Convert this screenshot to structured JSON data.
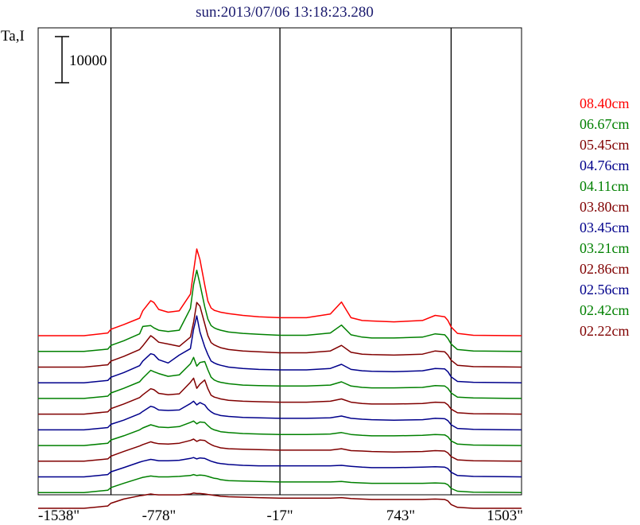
{
  "chart_data": {
    "type": "line",
    "title": "sun:2013/07/06 13:18:23.280",
    "ylabel": "Ta,I",
    "xlabel": "",
    "x_ticks": [
      "-1538\"",
      "-778\"",
      "-17\"",
      "743\"",
      "1503\""
    ],
    "x_tick_values": [
      -1538,
      -778,
      -17,
      743,
      1503
    ],
    "xlim": [
      -1538,
      1503
    ],
    "vertical_lines_x": [
      -1080,
      -17,
      1060
    ],
    "scale_bar": {
      "label": "10000",
      "value": 10000
    },
    "grid": false,
    "legend_placement": "right",
    "profile_x": [
      -1538,
      -1250,
      -1100,
      -1080,
      -1000,
      -900,
      -880,
      -830,
      -810,
      -780,
      -720,
      -650,
      -580,
      -560,
      -540,
      -520,
      -490,
      -470,
      -450,
      -430,
      -410,
      -390,
      -340,
      -250,
      -150,
      -17,
      60,
      150,
      300,
      370,
      430,
      500,
      560,
      700,
      880,
      960,
      1020,
      1040,
      1060,
      1100,
      1200,
      1503
    ],
    "series": [
      {
        "name": "08.40cm",
        "color": "#ff0000",
        "offset": 36200,
        "y": [
          0,
          0,
          600,
          1400,
          2400,
          3800,
          5400,
          7600,
          7200,
          5700,
          5100,
          5400,
          9000,
          14000,
          18800,
          16500,
          11000,
          7500,
          6000,
          5500,
          5300,
          5100,
          4800,
          4400,
          4100,
          3900,
          3900,
          3900,
          4700,
          7300,
          3900,
          3300,
          3200,
          3000,
          3300,
          4400,
          4100,
          3300,
          1900,
          500,
          100,
          0
        ]
      },
      {
        "name": "06.67cm",
        "color": "#008000",
        "offset": 32800,
        "y": [
          0,
          0,
          500,
          1300,
          2300,
          3800,
          5400,
          5600,
          5100,
          4600,
          4300,
          4600,
          9300,
          14500,
          17600,
          14600,
          9700,
          7000,
          5600,
          5100,
          4800,
          4600,
          4200,
          3900,
          3700,
          3500,
          3500,
          3500,
          4000,
          5700,
          3600,
          3100,
          2900,
          2900,
          3100,
          3800,
          3600,
          2800,
          1600,
          400,
          100,
          0
        ]
      },
      {
        "name": "05.45cm",
        "color": "#800000",
        "offset": 29400,
        "y": [
          0,
          0,
          500,
          1300,
          2300,
          3800,
          4600,
          6800,
          6300,
          5400,
          5000,
          4500,
          6500,
          9700,
          14000,
          13200,
          9400,
          6800,
          5300,
          4800,
          4500,
          4200,
          3800,
          3500,
          3300,
          3100,
          3100,
          3100,
          3500,
          4700,
          3200,
          2800,
          2700,
          2600,
          2800,
          3500,
          3300,
          2600,
          1500,
          400,
          100,
          0
        ]
      },
      {
        "name": "04.76cm",
        "color": "#00008b",
        "offset": 26000,
        "y": [
          0,
          0,
          500,
          1200,
          2200,
          3700,
          4700,
          6300,
          6100,
          5000,
          4300,
          6000,
          7400,
          11600,
          14500,
          11000,
          7800,
          6100,
          4700,
          4300,
          4000,
          3800,
          3400,
          3100,
          2900,
          2800,
          2800,
          2800,
          3100,
          4000,
          2900,
          2600,
          2500,
          2400,
          2600,
          3100,
          3000,
          2400,
          1300,
          300,
          100,
          0
        ]
      },
      {
        "name": "04.11cm",
        "color": "#008000",
        "offset": 22600,
        "y": [
          0,
          0,
          500,
          1200,
          2200,
          3600,
          4400,
          6100,
          5800,
          5400,
          4800,
          5100,
          7500,
          8900,
          7000,
          7800,
          8000,
          6200,
          4600,
          4000,
          3700,
          3500,
          3200,
          2900,
          2800,
          2700,
          2700,
          2700,
          2900,
          3600,
          2700,
          2400,
          2300,
          2300,
          2400,
          2800,
          2700,
          2200,
          1200,
          300,
          100,
          0
        ]
      },
      {
        "name": "03.80cm",
        "color": "#800000",
        "offset": 19200,
        "y": [
          0,
          0,
          500,
          1200,
          2200,
          3600,
          4200,
          5500,
          5300,
          4500,
          4200,
          4400,
          6900,
          7800,
          5600,
          6500,
          7400,
          5500,
          4100,
          3700,
          3500,
          3300,
          3000,
          2800,
          2700,
          2600,
          2600,
          2600,
          2800,
          3300,
          2600,
          2300,
          2200,
          2200,
          2300,
          2600,
          2500,
          2000,
          1100,
          300,
          100,
          0
        ]
      },
      {
        "name": "03.45cm",
        "color": "#00008b",
        "offset": 15800,
        "y": [
          0,
          0,
          500,
          1200,
          2100,
          3500,
          4000,
          5100,
          4900,
          4300,
          4200,
          4300,
          5700,
          6200,
          5400,
          5900,
          5400,
          4500,
          3900,
          3500,
          3300,
          3100,
          2900,
          2700,
          2600,
          2500,
          2500,
          2500,
          2600,
          3000,
          2500,
          2300,
          2200,
          2100,
          2200,
          2500,
          2400,
          2000,
          1100,
          300,
          100,
          0
        ]
      },
      {
        "name": "03.21cm",
        "color": "#008000",
        "offset": 12400,
        "y": [
          0,
          0,
          500,
          1200,
          2100,
          3400,
          3800,
          4500,
          4300,
          4000,
          3900,
          4100,
          5000,
          5300,
          4700,
          5100,
          5000,
          4300,
          3700,
          3400,
          3200,
          3000,
          2800,
          2600,
          2500,
          2400,
          2400,
          2400,
          2500,
          2800,
          2400,
          2200,
          2100,
          2100,
          2200,
          2400,
          2300,
          1900,
          1000,
          300,
          100,
          0
        ]
      },
      {
        "name": "02.86cm",
        "color": "#800000",
        "offset": 9000,
        "y": [
          0,
          0,
          500,
          1100,
          2100,
          3300,
          3600,
          4200,
          4000,
          3800,
          3700,
          3900,
          4500,
          4800,
          4300,
          4600,
          4500,
          4000,
          3600,
          3300,
          3100,
          2900,
          2700,
          2600,
          2500,
          2400,
          2400,
          2400,
          2400,
          2700,
          2300,
          2200,
          2100,
          2000,
          2100,
          2300,
          2200,
          1800,
          1000,
          300,
          100,
          0
        ]
      },
      {
        "name": "02.56cm",
        "color": "#00008b",
        "offset": 5600,
        "y": [
          0,
          0,
          500,
          1100,
          2000,
          3200,
          3400,
          3800,
          3700,
          3500,
          3500,
          3600,
          4000,
          4200,
          3900,
          4100,
          4000,
          3700,
          3400,
          3200,
          3000,
          2900,
          2700,
          2500,
          2400,
          2400,
          2400,
          2400,
          2400,
          2500,
          2300,
          2100,
          2000,
          2000,
          2100,
          2200,
          2100,
          1800,
          1000,
          300,
          100,
          0
        ]
      },
      {
        "name": "02.42cm",
        "color": "#008000",
        "offset": 2200,
        "y": [
          0,
          0,
          500,
          1100,
          2000,
          3100,
          3300,
          3600,
          3500,
          3400,
          3400,
          3500,
          3700,
          3900,
          3700,
          3800,
          3700,
          3500,
          3300,
          3100,
          3000,
          2800,
          2600,
          2500,
          2400,
          2300,
          2300,
          2300,
          2300,
          2400,
          2200,
          2100,
          2000,
          2000,
          2000,
          2100,
          2000,
          1700,
          900,
          300,
          100,
          0
        ]
      },
      {
        "name": "02.22cm",
        "color": "#800000",
        "offset": -1200,
        "y": [
          0,
          0,
          500,
          1100,
          2000,
          2700,
          2800,
          3100,
          3000,
          2900,
          2900,
          2900,
          3100,
          3300,
          3200,
          3200,
          3100,
          3000,
          2900,
          2800,
          2700,
          2600,
          2500,
          2400,
          2300,
          2200,
          2200,
          2200,
          2200,
          2300,
          2100,
          2000,
          1900,
          1900,
          1900,
          2000,
          1900,
          1600,
          800,
          200,
          0,
          0
        ]
      }
    ]
  }
}
